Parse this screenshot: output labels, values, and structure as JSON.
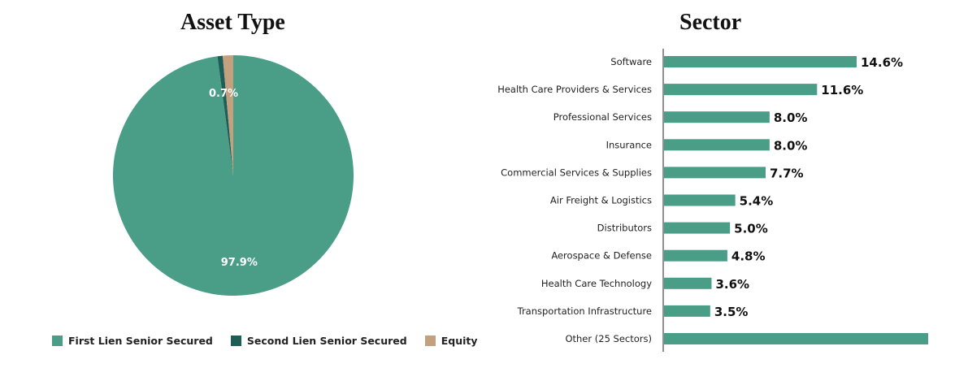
{
  "chart_data": [
    {
      "type": "pie",
      "title": "Asset Type",
      "slices": [
        {
          "name": "First Lien Senior Secured",
          "value": 97.9,
          "label": "97.9%",
          "color": "#4a9e88"
        },
        {
          "name": "Second Lien Senior Secured",
          "value": 0.7,
          "label": "",
          "color": "#1f5e57"
        },
        {
          "name": "Equity",
          "value": 1.4,
          "label": "",
          "color": "#c3a07e"
        }
      ],
      "annotations": [
        "0.7%"
      ],
      "legend_position": "bottom"
    },
    {
      "type": "bar",
      "orientation": "horizontal",
      "title": "Sector",
      "categories": [
        "Software",
        "Health Care Providers & Services",
        "Professional Services",
        "Insurance",
        "Commercial Services & Supplies",
        "Air Freight & Logistics",
        "Distributors",
        "Aerospace & Defense",
        "Health Care Technology",
        "Transportation Infrastructure",
        "Other (25 Sectors)"
      ],
      "values": [
        14.6,
        11.6,
        8.0,
        8.0,
        7.7,
        5.4,
        5.0,
        4.8,
        3.6,
        3.5,
        21.3
      ],
      "value_labels": [
        "14.6%",
        "11.6%",
        "8.0%",
        "8.0%",
        "7.7%",
        "5.4%",
        "5.0%",
        "4.8%",
        "3.6%",
        "3.5%",
        ""
      ],
      "bar_color": "#4a9e88",
      "grid": false
    }
  ]
}
